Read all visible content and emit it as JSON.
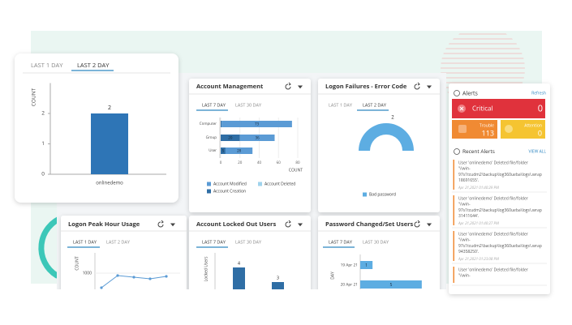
{
  "popup": {
    "tabs": [
      "LAST 1 DAY",
      "LAST 2 DAY"
    ],
    "active_tab": 1,
    "y_axis_label": "COUNT",
    "ylim": [
      0,
      3
    ],
    "yticks": [
      0,
      1,
      2
    ],
    "categories": [
      "onlinedemo"
    ],
    "values": [
      2
    ],
    "color": "#2e75b6"
  },
  "account_management": {
    "title": "Account Management",
    "tabs": [
      "LAST 7 DAY",
      "LAST 30 DAY"
    ],
    "active_tab": 0,
    "categories": [
      "Computer",
      "Group",
      "User"
    ],
    "xlim": [
      0,
      80
    ],
    "xticks": [
      0,
      20,
      40,
      60,
      80
    ],
    "x_axis_label": "COUNT",
    "series": [
      {
        "name": "Account Creation",
        "color": "#2f6ea5",
        "values": [
          1,
          20,
          5
        ]
      },
      {
        "name": "Account Modified",
        "color": "#5b9bd5",
        "values": [
          73,
          36,
          28
        ]
      },
      {
        "name": "Account Deleted",
        "color": "#9fd3ec",
        "values": [
          null,
          null,
          null
        ]
      }
    ]
  },
  "logon_failures": {
    "title": "Logon Failures - Error Code",
    "tabs": [
      "LAST 1 DAY",
      "LAST 2 DAY"
    ],
    "active_tab": 1,
    "categories": [
      "Bad password"
    ],
    "values": [
      2
    ],
    "color": "#5dade2"
  },
  "alerts": {
    "title": "Alerts",
    "refresh": "Refresh",
    "critical": {
      "label": "Critical",
      "count": 0
    },
    "trouble": {
      "label": "Trouble",
      "count": 113
    },
    "attention": {
      "label": "Attention",
      "count": 0
    },
    "recent_title": "Recent Alerts",
    "view_all": "VIEW ALL",
    "items": [
      {
        "lines": [
          "User 'onlinedemo' Deleted file/folder",
          "'\\\\win-",
          "97s1tcudm2\\backup\\log360ueba\\logs\\.wrap",
          "18691655'."
        ],
        "time": "Apr 21,2021 01:40:29 PM"
      },
      {
        "lines": [
          "User 'onlinedemo' Deleted file/folder",
          "'\\\\win-",
          "97s1tcudm2\\backup\\log360ueba\\logs\\.wrap",
          "31411644'."
        ],
        "time": "Apr 21,2021 01:40:27 PM"
      },
      {
        "lines": [
          "User 'onlinedemo' Deleted file/folder",
          "'\\\\win-",
          "97s1tcudm2\\backup\\log360ueba\\logs\\.wrap",
          "94358250'."
        ],
        "time": "Apr 21,2021 01:23:08 PM"
      },
      {
        "lines": [
          "User 'onlinedemo' Deleted file/folder",
          "'\\\\win-"
        ]
      }
    ]
  },
  "logon_peak": {
    "title": "Logon Peak Hour Usage",
    "tabs": [
      "LAST 1 DAY",
      "LAST 2 DAY"
    ],
    "active_tab": 0,
    "y_axis_label": "COUNT",
    "ylim": [
      500,
      1500
    ],
    "yticks": [
      1000
    ],
    "categories": [
      null,
      null,
      null,
      null,
      null
    ],
    "values": [
      550,
      925,
      875,
      825,
      900
    ],
    "color": "#5b9bd5"
  },
  "locked_out": {
    "title": "Account Locked Out Users",
    "tabs": [
      "LAST 7 DAY",
      "LAST 30 DAY"
    ],
    "active_tab": 0,
    "y_axis_label": "Locked Users",
    "ylim": [
      0,
      5
    ],
    "categories": [
      null,
      null
    ],
    "values": [
      4,
      3
    ],
    "color": "#2f6ea5"
  },
  "password_changes": {
    "title": "Password Changed/Set Users",
    "tabs": [
      "LAST 7 DAY",
      "LAST 30 DAY"
    ],
    "active_tab": 0,
    "y_axis_label": "DAY",
    "xlim": [
      0,
      6
    ],
    "categories": [
      "19 Apr 21",
      "20 Apr 21"
    ],
    "values": [
      1,
      5
    ],
    "color": "#5dade2"
  }
}
